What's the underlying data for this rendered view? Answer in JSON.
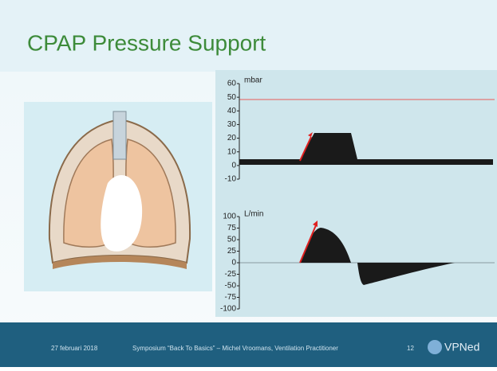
{
  "title": "CPAP Pressure Support",
  "pressure_chart": {
    "unit": "mbar",
    "ylim": [
      -10,
      60
    ],
    "yticks": [
      60,
      50,
      40,
      30,
      20,
      10,
      0,
      -10
    ]
  },
  "flow_chart": {
    "unit": "L/min",
    "ylim": [
      -100,
      100
    ],
    "yticks": [
      100,
      75,
      50,
      25,
      0,
      -25,
      -50,
      -75,
      -100
    ]
  },
  "footer": {
    "date": "27 februari 2018",
    "text": "Symposium “Back To Basics” – Michel Vroomans, Ventilation Practitioner",
    "page": 12,
    "logo": "VPNed"
  }
}
